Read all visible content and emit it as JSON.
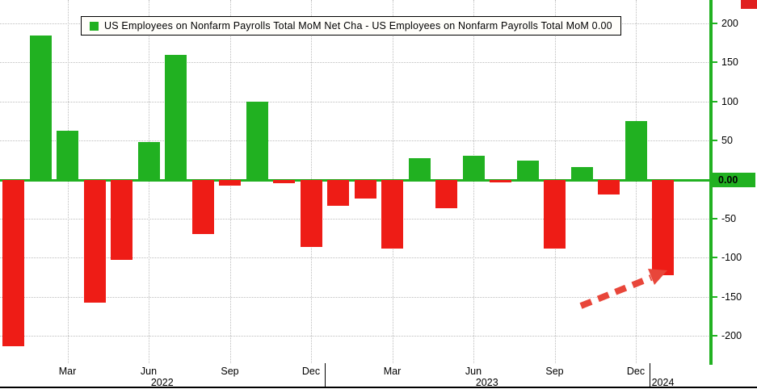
{
  "decor": {
    "corner_marker_color": "#e01f1f",
    "background": "#ffffff",
    "grid_color": "#bdbdbd"
  },
  "chart_data": {
    "type": "bar",
    "legend": "US Employees on Nonfarm Payrolls Total MoM Net Cha - US Employees on Nonfarm Payrolls Total MoM 0.00",
    "axis_color": "#21b121",
    "bar_colors": {
      "positive": "#21b121",
      "negative": "#ee1c16"
    },
    "months": [
      "Jan 2022",
      "Feb 2022",
      "Mar 2022",
      "Apr 2022",
      "May 2022",
      "Jun 2022",
      "Jul 2022",
      "Aug 2022",
      "Sep 2022",
      "Oct 2022",
      "Nov 2022",
      "Dec 2022",
      "Jan 2023",
      "Feb 2023",
      "Mar 2023",
      "Apr 2023",
      "May 2023",
      "Jun 2023",
      "Jul 2023",
      "Aug 2023",
      "Sep 2023",
      "Oct 2023",
      "Nov 2023",
      "Dec 2023",
      "Jan 2024"
    ],
    "values": [
      -213,
      185,
      63,
      -158,
      -103,
      48,
      160,
      -70,
      -8,
      100,
      -5,
      -86,
      -34,
      -24,
      -88,
      27,
      -37,
      31,
      -4,
      24,
      -88,
      16,
      -19,
      75,
      -122
    ],
    "ylim": [
      -235,
      230
    ],
    "yticks": [
      200,
      150,
      100,
      50,
      0,
      -50,
      -100,
      -150,
      -200
    ],
    "ytick_labels": [
      "200",
      "150",
      "100",
      "50",
      "0.00",
      "-50",
      "-100",
      "-150",
      "-200"
    ],
    "x_tick_indices": [
      2,
      5,
      8,
      11,
      14,
      17,
      20,
      23
    ],
    "x_tick_labels": [
      "Mar",
      "Jun",
      "Sep",
      "Dec",
      "Mar",
      "Jun",
      "Sep",
      "Dec"
    ],
    "years": [
      {
        "label": "2022",
        "from_index": 0,
        "to_index": 11
      },
      {
        "label": "2023",
        "from_index": 12,
        "to_index": 23
      },
      {
        "label": "2024",
        "from_index": 24,
        "to_index": 24
      }
    ],
    "grid": "dotted",
    "legend_position": "top",
    "annotation": {
      "shape": "dashed-arrow",
      "color": "#e8463a",
      "target": "Jan 2024 bar"
    }
  }
}
